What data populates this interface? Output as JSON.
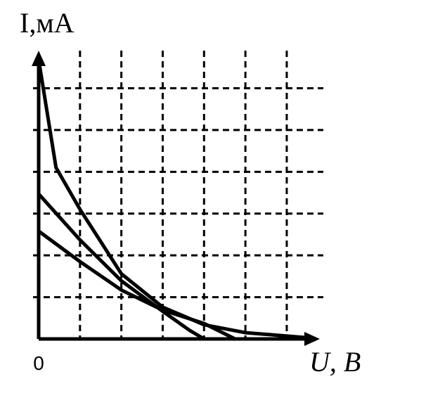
{
  "chart_data": {
    "type": "line",
    "y_label": "I,мА",
    "x_label": "U, B",
    "xlim": [
      0,
      6.8
    ],
    "ylim": [
      0,
      6.9
    ],
    "xticks": [
      0
    ],
    "grid_x": [
      1,
      2,
      3,
      4,
      5,
      6
    ],
    "grid_y": [
      1,
      2,
      3,
      4,
      5,
      6
    ],
    "grid": true,
    "series": [
      {
        "color": "#000000",
        "x": [
          0.03,
          0.42,
          1,
          2,
          3,
          4,
          5,
          6,
          6.5
        ],
        "values": [
          6.5,
          4.1,
          3.1,
          1.56,
          0.76,
          0.34,
          0.15,
          0.07,
          0.03
        ]
      },
      {
        "color": "#000000",
        "x": [
          0,
          1,
          2,
          3,
          3.66,
          4
        ],
        "values": [
          3.47,
          2.37,
          1.39,
          0.66,
          0.2,
          0
        ]
      },
      {
        "color": "#000000",
        "x": [
          0,
          1,
          2,
          3,
          4,
          4.75
        ],
        "values": [
          2.58,
          1.85,
          1.17,
          0.69,
          0.37,
          0
        ]
      }
    ]
  }
}
